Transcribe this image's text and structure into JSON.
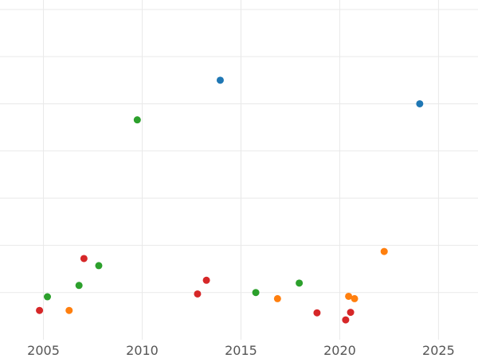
{
  "chart_data": {
    "type": "scatter",
    "title": "",
    "xlabel": "",
    "ylabel": "",
    "xlim": [
      2002.8,
      2027.0
    ],
    "ylim": [
      0,
      7.2
    ],
    "x_ticks": [
      2005,
      2010,
      2015,
      2020,
      2025
    ],
    "y_gridlines": [
      1,
      2,
      3,
      4,
      5,
      6,
      7
    ],
    "grid": true,
    "legend": "none",
    "series": [
      {
        "color": "#1f77b4",
        "points": [
          {
            "x": 2013.95,
            "y": 5.5
          },
          {
            "x": 2024.05,
            "y": 5.0
          }
        ]
      },
      {
        "color": "#2ca02c",
        "points": [
          {
            "x": 2009.75,
            "y": 4.66
          },
          {
            "x": 2005.2,
            "y": 0.91
          },
          {
            "x": 2006.8,
            "y": 1.15
          },
          {
            "x": 2007.8,
            "y": 1.57
          },
          {
            "x": 2015.75,
            "y": 1.0
          },
          {
            "x": 2017.95,
            "y": 1.2
          }
        ]
      },
      {
        "color": "#d62728",
        "points": [
          {
            "x": 2004.8,
            "y": 0.62
          },
          {
            "x": 2007.05,
            "y": 1.72
          },
          {
            "x": 2012.8,
            "y": 0.97
          },
          {
            "x": 2013.25,
            "y": 1.26
          },
          {
            "x": 2018.85,
            "y": 0.57
          },
          {
            "x": 2020.3,
            "y": 0.42
          },
          {
            "x": 2020.55,
            "y": 0.58
          }
        ]
      },
      {
        "color": "#ff7f0e",
        "points": [
          {
            "x": 2006.3,
            "y": 0.62
          },
          {
            "x": 2016.85,
            "y": 0.87
          },
          {
            "x": 2020.45,
            "y": 0.92
          },
          {
            "x": 2020.75,
            "y": 0.87
          },
          {
            "x": 2022.25,
            "y": 1.87
          }
        ]
      }
    ]
  }
}
